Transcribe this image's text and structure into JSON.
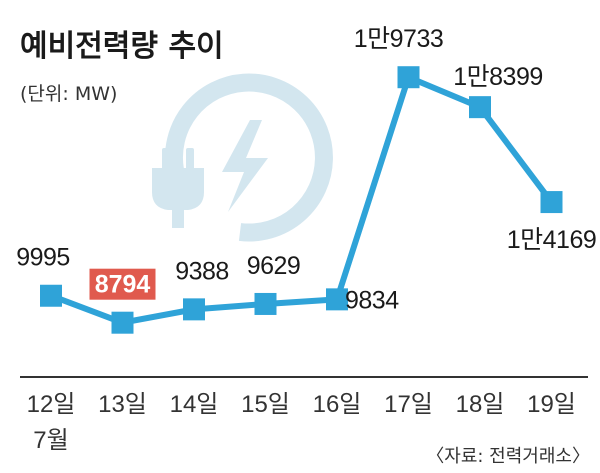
{
  "chart_data": {
    "type": "line",
    "title": "예비전력량 추이",
    "unit_label": "(단위: MW)",
    "source": "〈자료: 전력거래소〉",
    "categories": [
      "12일",
      "13일",
      "14일",
      "15일",
      "16일",
      "17일",
      "18일",
      "19일"
    ],
    "month_label": "7월",
    "values": [
      9995,
      8794,
      9388,
      9629,
      9834,
      19733,
      18399,
      14169
    ],
    "value_labels": [
      "9995",
      "8794",
      "9388",
      "9629",
      "9834",
      "1만9733",
      "1만8399",
      "1만4169"
    ],
    "highlight_index": 1,
    "ylim": [
      7800,
      20500
    ],
    "grid": false,
    "colors": {
      "line": "#2fa3d8",
      "marker": "#2fa3d8",
      "highlight_bg": "#e05a4e",
      "highlight_text": "#e05a4e",
      "icon": "#d3e6ef",
      "axis": "#333333"
    },
    "decoration_icon": "power-plug-lightning-icon"
  }
}
